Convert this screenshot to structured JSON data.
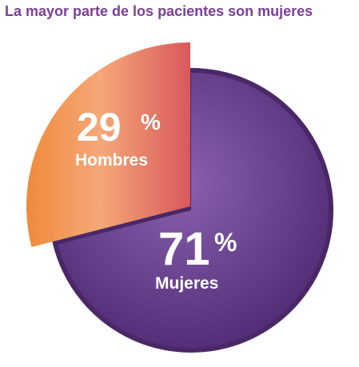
{
  "title": "La mayor parte de los pacientes son mujeres",
  "colors": {
    "title": "#7b3f98",
    "mujeres_light": "#8a62b0",
    "mujeres_dark": "#4f2b74",
    "mujeres_rim": "#4a2868",
    "hombres_left": "#f08a3c",
    "hombres_mid": "#f5a878",
    "hombres_right": "#d9585c"
  },
  "chart_data": {
    "type": "pie",
    "title": "La mayor parte de los pacientes son mujeres",
    "slices": [
      {
        "label": "Mujeres",
        "value": 71,
        "display": "71",
        "unit": "%"
      },
      {
        "label": "Hombres",
        "value": 29,
        "display": "29",
        "unit": "%"
      }
    ]
  }
}
